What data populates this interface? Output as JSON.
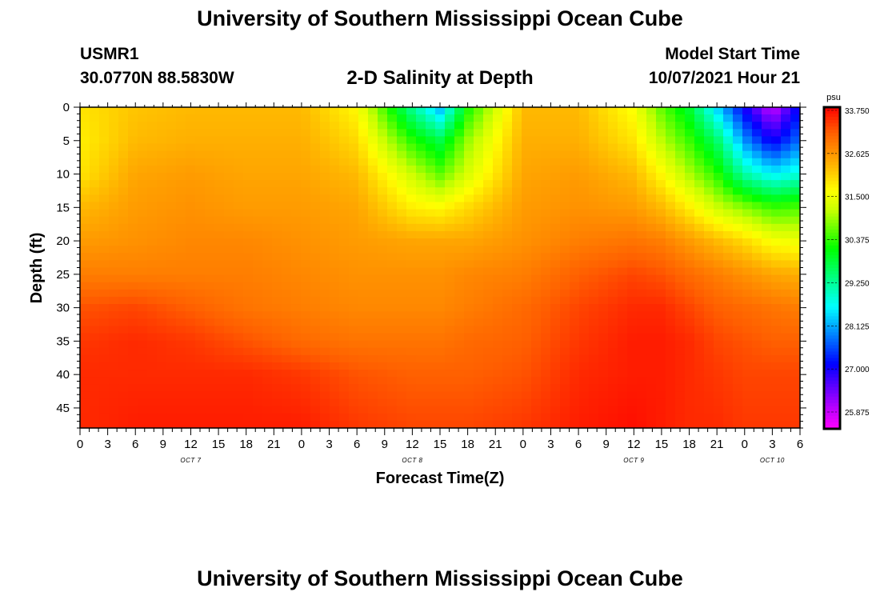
{
  "header": {
    "title": "University of Southern Mississippi Ocean Cube",
    "station": "USMR1",
    "coordinates": "30.0770N  88.5830W",
    "subtitle": "2-D Salinity at Depth",
    "model_label": "Model Start Time",
    "model_time": "10/07/2021 Hour 21"
  },
  "footer": {
    "title": "University of Southern Mississippi Ocean Cube"
  },
  "chart_data": {
    "type": "heatmap",
    "title": "2-D Salinity at Depth",
    "xlabel": "Forecast Time(Z)",
    "ylabel": "Depth (ft)",
    "x_hours": [
      0,
      78
    ],
    "x_tick_labels": [
      "0",
      "3",
      "6",
      "9",
      "12",
      "15",
      "18",
      "21",
      "0",
      "3",
      "6",
      "9",
      "12",
      "15",
      "18",
      "21",
      "0",
      "3",
      "6",
      "9",
      "12",
      "15",
      "18",
      "21",
      "0",
      "3",
      "6"
    ],
    "date_labels": [
      {
        "label": "OCT 7",
        "hour": 12
      },
      {
        "label": "OCT 8",
        "hour": 36
      },
      {
        "label": "OCT 9",
        "hour": 60
      },
      {
        "label": "OCT 10",
        "hour": 75
      }
    ],
    "y_ticks": [
      0,
      5,
      10,
      15,
      20,
      25,
      30,
      35,
      40,
      45
    ],
    "ylim": [
      0,
      48
    ],
    "colorbar": {
      "unit": "psu",
      "min": 25.3,
      "max": 33.9,
      "tick_labels": [
        "33.750",
        "32.625",
        "31.500",
        "30.375",
        "29.250",
        "28.125",
        "27.000",
        "25.875"
      ]
    },
    "grid_depths": [
      0,
      5,
      10,
      15,
      20,
      25,
      30,
      35,
      40,
      48
    ],
    "grid_hours": [
      0,
      6,
      12,
      18,
      24,
      30,
      36,
      39,
      42,
      48,
      54,
      60,
      63,
      66,
      69,
      72,
      75,
      78
    ],
    "salinity": [
      [
        31.9,
        32.2,
        32.3,
        32.3,
        32.3,
        31.7,
        29.2,
        28.1,
        30.2,
        32.3,
        32.3,
        31.6,
        30.6,
        29.8,
        28.3,
        26.9,
        25.7,
        27.1
      ],
      [
        31.8,
        32.3,
        32.4,
        32.4,
        32.4,
        32.0,
        30.3,
        29.7,
        30.9,
        32.4,
        32.4,
        31.9,
        31.1,
        30.4,
        29.5,
        27.9,
        26.9,
        27.7
      ],
      [
        31.9,
        32.5,
        32.6,
        32.5,
        32.5,
        32.3,
        31.2,
        30.6,
        31.3,
        32.5,
        32.6,
        32.3,
        31.7,
        31.0,
        30.3,
        29.1,
        28.5,
        28.8
      ],
      [
        32.3,
        32.6,
        32.7,
        32.6,
        32.6,
        32.5,
        31.8,
        31.7,
        32.0,
        32.6,
        32.7,
        32.6,
        32.3,
        31.8,
        31.2,
        30.8,
        30.4,
        30.5
      ],
      [
        32.6,
        32.7,
        32.8,
        32.8,
        32.7,
        32.6,
        32.5,
        32.5,
        32.5,
        32.7,
        32.9,
        33.0,
        32.9,
        32.6,
        32.3,
        32.0,
        31.6,
        31.5
      ],
      [
        32.9,
        32.9,
        32.9,
        32.9,
        32.8,
        32.7,
        32.7,
        32.7,
        32.8,
        32.9,
        33.2,
        33.4,
        33.3,
        33.1,
        32.9,
        32.7,
        32.5,
        32.4
      ],
      [
        33.3,
        33.4,
        33.2,
        33.0,
        32.9,
        32.8,
        32.8,
        32.8,
        32.9,
        33.1,
        33.4,
        33.6,
        33.6,
        33.4,
        33.2,
        33.1,
        33.0,
        32.9
      ],
      [
        33.5,
        33.6,
        33.5,
        33.3,
        33.1,
        33.0,
        33.0,
        33.0,
        33.1,
        33.2,
        33.5,
        33.7,
        33.7,
        33.6,
        33.4,
        33.3,
        33.2,
        33.2
      ],
      [
        33.6,
        33.6,
        33.6,
        33.6,
        33.5,
        33.3,
        33.2,
        33.2,
        33.2,
        33.3,
        33.6,
        33.7,
        33.7,
        33.6,
        33.5,
        33.4,
        33.4,
        33.4
      ],
      [
        33.6,
        33.7,
        33.7,
        33.7,
        33.7,
        33.5,
        33.4,
        33.4,
        33.4,
        33.5,
        33.7,
        33.8,
        33.7,
        33.6,
        33.6,
        33.5,
        33.5,
        33.5
      ]
    ]
  }
}
